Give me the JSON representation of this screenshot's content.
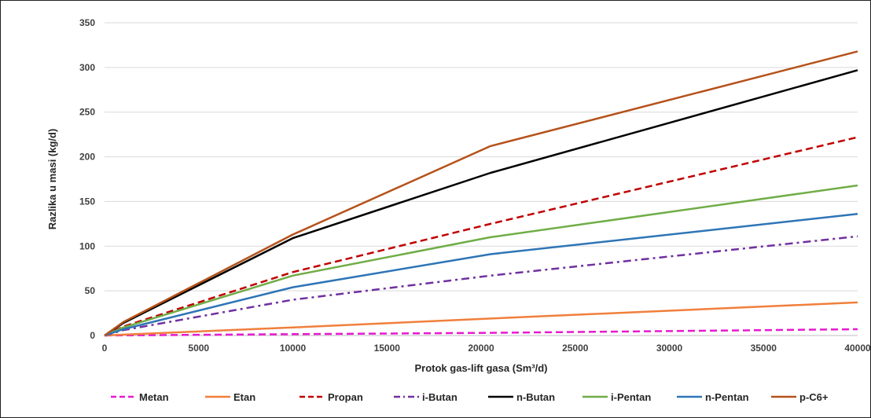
{
  "chart_data": {
    "type": "line",
    "title": "",
    "xlabel": "Protok gas-lift gasa (Sm³/d)",
    "ylabel": "Razlika u masi (kg/d)",
    "xlim": [
      0,
      40000
    ],
    "ylim": [
      0,
      350
    ],
    "xticks": [
      0,
      5000,
      10000,
      15000,
      20000,
      25000,
      30000,
      35000,
      40000
    ],
    "yticks": [
      0,
      50,
      100,
      150,
      200,
      250,
      300,
      350
    ],
    "grid": "horizontal",
    "legend_position": "bottom",
    "series": [
      {
        "name": "Metan",
        "color": "#e619d0",
        "dash": "dashed",
        "x": [
          0,
          1000,
          10000,
          20500,
          40000
        ],
        "y": [
          0,
          0.2,
          1.5,
          3,
          7
        ]
      },
      {
        "name": "Etan",
        "color": "#f07f3c",
        "dash": "solid",
        "x": [
          0,
          1000,
          10000,
          20500,
          40000
        ],
        "y": [
          0,
          1,
          9,
          19,
          37
        ]
      },
      {
        "name": "Propan",
        "color": "#c00000",
        "dash": "dashed",
        "x": [
          0,
          1000,
          10000,
          20500,
          40000
        ],
        "y": [
          0,
          10,
          71,
          125,
          222
        ]
      },
      {
        "name": "i-Butan",
        "color": "#7030a0",
        "dash": "dashdot",
        "x": [
          0,
          1000,
          10000,
          20500,
          40000
        ],
        "y": [
          0,
          6,
          40,
          67,
          111
        ]
      },
      {
        "name": "n-Butan",
        "color": "#000000",
        "dash": "solid",
        "x": [
          0,
          1000,
          10000,
          20500,
          40000
        ],
        "y": [
          0,
          14,
          109,
          182,
          297
        ]
      },
      {
        "name": "i-Pentan",
        "color": "#70ad47",
        "dash": "solid",
        "x": [
          0,
          1000,
          10000,
          20500,
          40000
        ],
        "y": [
          0,
          9,
          67,
          110,
          168
        ]
      },
      {
        "name": "n-Pentan",
        "color": "#2e75b6",
        "dash": "solid",
        "x": [
          0,
          1000,
          10000,
          20500,
          40000
        ],
        "y": [
          0,
          7,
          54,
          91,
          136
        ]
      },
      {
        "name": "p-C6+",
        "color": "#b5521a",
        "dash": "solid",
        "x": [
          0,
          1000,
          10000,
          20500,
          40000
        ],
        "y": [
          0,
          15,
          113,
          212,
          318
        ]
      }
    ]
  }
}
